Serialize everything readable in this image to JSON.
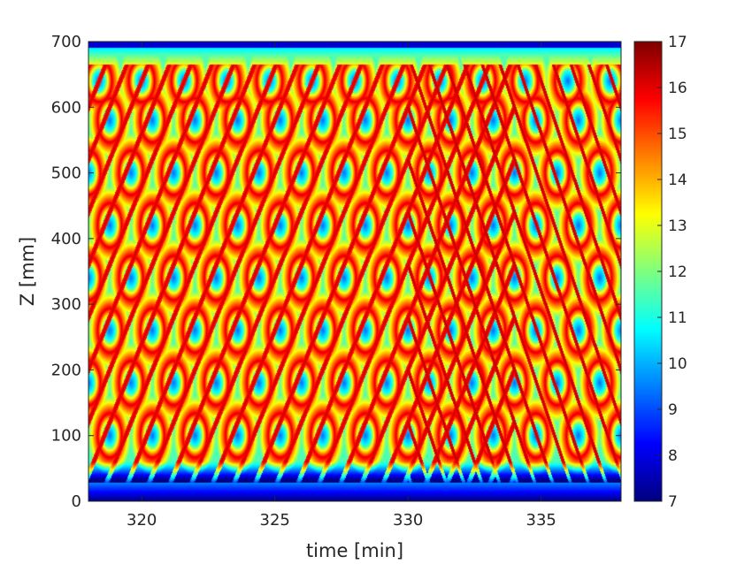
{
  "chart_data": {
    "type": "heatmap",
    "title": "",
    "xlabel": "time [min]",
    "ylabel": "Z [mm]",
    "xlim": [
      318,
      338
    ],
    "ylim": [
      0,
      700
    ],
    "xticks": [
      320,
      325,
      330,
      335
    ],
    "yticks": [
      0,
      100,
      200,
      300,
      400,
      500,
      600,
      700
    ],
    "xtick_labels": [
      "320",
      "325",
      "330",
      "335"
    ],
    "ytick_labels": [
      "0",
      "100",
      "200",
      "300",
      "400",
      "500",
      "600",
      "700"
    ],
    "colormap": "jet",
    "clim": [
      7,
      17
    ],
    "colorbar_ticks": [
      7,
      8,
      9,
      10,
      11,
      12,
      13,
      14,
      15,
      16,
      17
    ],
    "colorbar_tick_labels": [
      "7",
      "8",
      "9",
      "10",
      "11",
      "12",
      "13",
      "14",
      "15",
      "16",
      "17"
    ],
    "colorbar_location": "right",
    "grid": false,
    "pattern": {
      "cell_period_min": 1.6,
      "cell_centers_z": [
        100,
        180,
        260,
        340,
        420,
        500,
        580
      ],
      "wall_low_z": 28,
      "wall_high_z": 690,
      "wall_value": 7,
      "rising_front_speed_mm_per_min": 100,
      "falling_front_onset_min": 330
    }
  }
}
